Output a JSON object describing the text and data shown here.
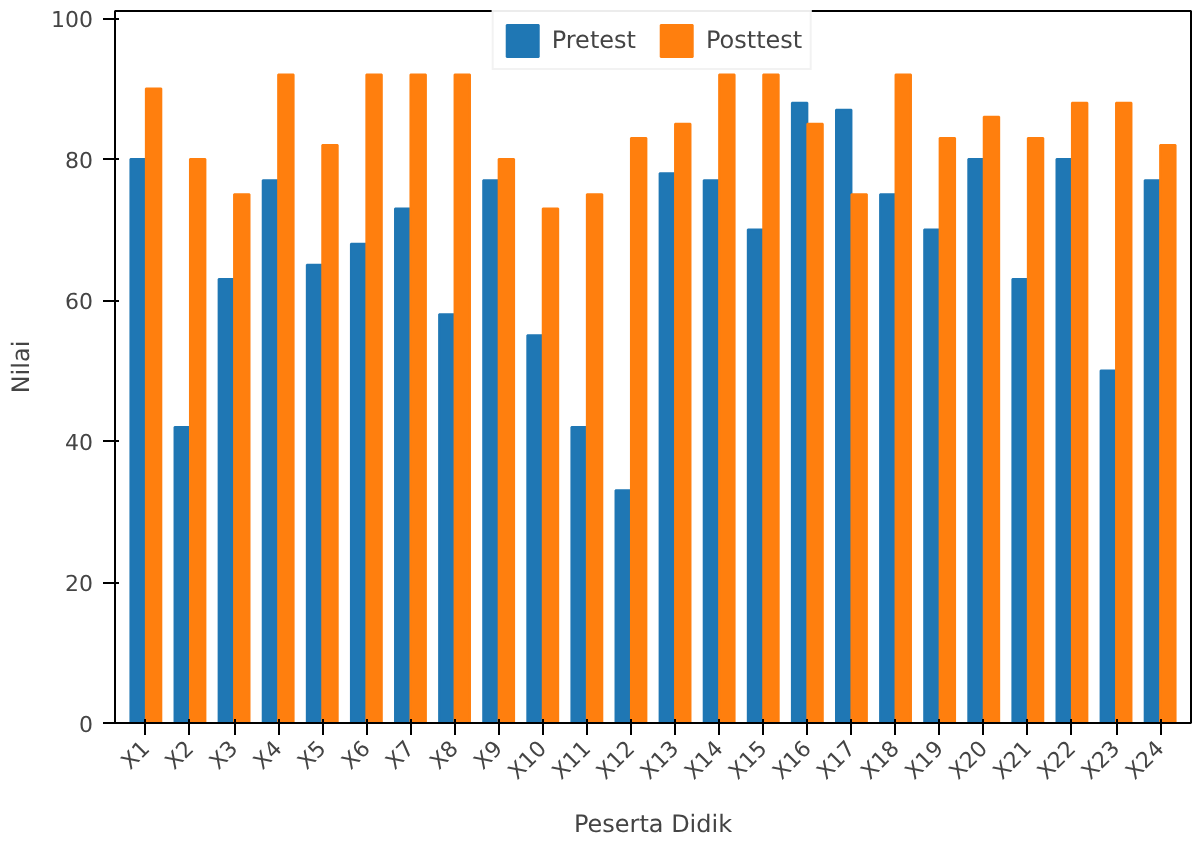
{
  "chart_data": {
    "type": "bar",
    "xlabel": "Peserta Didik",
    "ylabel": "Nilai",
    "categories": [
      "X1",
      "X2",
      "X3",
      "X4",
      "X5",
      "X6",
      "X7",
      "X8",
      "X9",
      "X10",
      "X11",
      "X12",
      "X13",
      "X14",
      "X15",
      "X16",
      "X17",
      "X18",
      "X19",
      "X20",
      "X21",
      "X22",
      "X23",
      "X24"
    ],
    "series": [
      {
        "name": "Pretest",
        "color": "#1f77b4",
        "values": [
          80,
          42,
          63,
          77,
          65,
          68,
          73,
          58,
          77,
          55,
          42,
          33,
          78,
          77,
          70,
          88,
          87,
          75,
          70,
          80,
          63,
          80,
          50,
          77
        ]
      },
      {
        "name": "Posttest",
        "color": "#ff7f0e",
        "values": [
          90,
          80,
          75,
          92,
          82,
          92,
          92,
          92,
          80,
          73,
          75,
          83,
          85,
          92,
          92,
          85,
          75,
          92,
          83,
          86,
          83,
          88,
          88,
          82
        ]
      }
    ],
    "ylim": [
      0,
      101
    ],
    "yticks": [
      0,
      20,
      40,
      60,
      80,
      100
    ],
    "grid": false,
    "legend": "top"
  }
}
